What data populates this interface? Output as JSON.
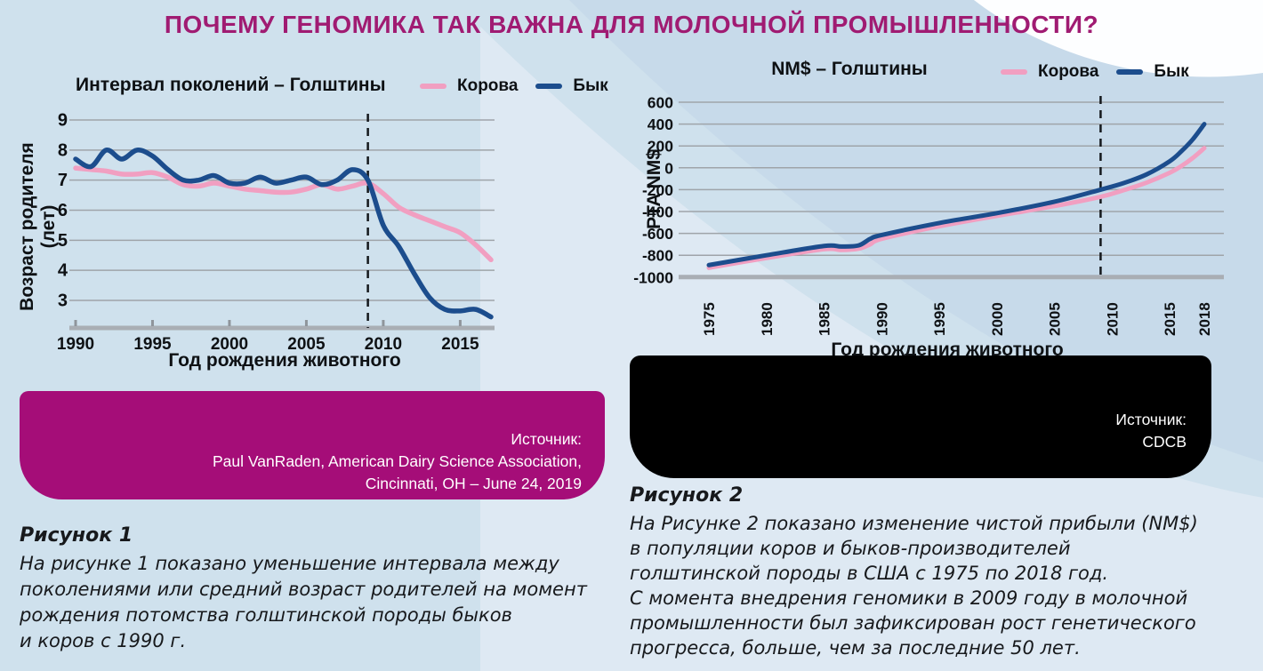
{
  "page": {
    "title": "ПОЧЕМУ ГЕНОМИКА ТАК ВАЖНА ДЛЯ МОЛОЧНОЙ ПРОМЫШЛЕННОСТИ?"
  },
  "colors": {
    "title_magenta": "#a01b72",
    "cow_pink": "#f19fc1",
    "bull_blue": "#1c4d8d",
    "source_box_magenta": "#a50d78",
    "source_box_black": "#000000",
    "background_blue": "#cfe1ed"
  },
  "chart_data": [
    {
      "type": "line",
      "title": "Интервал поколений – Голштины",
      "xlabel": "Год рождения животного",
      "ylabel": "Возраст родителя (лет)",
      "x_ticks": [
        1990,
        1995,
        2000,
        2005,
        2010,
        2015
      ],
      "y_ticks": [
        9,
        8,
        7,
        6,
        5,
        4,
        3
      ],
      "xlim": [
        1990,
        2017
      ],
      "ylim": [
        2.1,
        9
      ],
      "grid": true,
      "legend_position": "top-right",
      "annotation_line_x": 2009,
      "series": [
        {
          "name": "Корова",
          "color": "#f19fc1",
          "x": [
            1990,
            1991,
            1992,
            1993,
            1994,
            1995,
            1996,
            1997,
            1998,
            1999,
            2000,
            2001,
            2002,
            2003,
            2004,
            2005,
            2006,
            2007,
            2008,
            2009,
            2010,
            2011,
            2012,
            2013,
            2014,
            2015,
            2016,
            2017
          ],
          "y": [
            7.4,
            7.35,
            7.3,
            7.2,
            7.2,
            7.25,
            7.1,
            6.85,
            6.8,
            6.9,
            6.8,
            6.7,
            6.65,
            6.6,
            6.6,
            6.7,
            6.85,
            6.7,
            6.8,
            6.9,
            6.55,
            6.1,
            5.85,
            5.65,
            5.45,
            5.25,
            4.85,
            4.35
          ]
        },
        {
          "name": "Бык",
          "color": "#1c4d8d",
          "x": [
            1990,
            1991,
            1992,
            1993,
            1994,
            1995,
            1996,
            1997,
            1998,
            1999,
            2000,
            2001,
            2002,
            2003,
            2004,
            2005,
            2006,
            2007,
            2008,
            2009,
            2010,
            2011,
            2012,
            2013,
            2014,
            2015,
            2016,
            2017
          ],
          "y": [
            7.7,
            7.45,
            8.0,
            7.7,
            8.0,
            7.8,
            7.35,
            7.0,
            7.0,
            7.15,
            6.9,
            6.9,
            7.1,
            6.9,
            7.0,
            7.1,
            6.85,
            7.0,
            7.35,
            7.0,
            5.5,
            4.8,
            3.9,
            3.1,
            2.7,
            2.65,
            2.7,
            2.45
          ]
        }
      ]
    },
    {
      "type": "line",
      "title": "NM$ – Голштины",
      "xlabel": "Год рождения животного",
      "ylabel": "PTA NM$",
      "x_ticks": [
        1975,
        1980,
        1985,
        1990,
        1995,
        2000,
        2005,
        2010,
        2015,
        2018
      ],
      "y_ticks": [
        600,
        400,
        200,
        0,
        -200,
        -400,
        -600,
        -800,
        -1000
      ],
      "xlim": [
        1975,
        2018
      ],
      "ylim": [
        -1000,
        600
      ],
      "grid": true,
      "legend_position": "top-right",
      "annotation_line_x": 2009,
      "series": [
        {
          "name": "Корова",
          "color": "#f19fc1",
          "x": [
            1975,
            1980,
            1985,
            1986.5,
            1988,
            1989,
            1990,
            1995,
            2000,
            2005,
            2009,
            2011,
            2013,
            2015,
            2016,
            2017,
            2018
          ],
          "y": [
            -915,
            -825,
            -745,
            -752,
            -740,
            -700,
            -650,
            -535,
            -440,
            -350,
            -265,
            -205,
            -135,
            -45,
            15,
            90,
            180
          ]
        },
        {
          "name": "Бык",
          "color": "#1c4d8d",
          "x": [
            1975,
            1980,
            1985,
            1986.5,
            1988,
            1989,
            1990,
            1995,
            2000,
            2005,
            2009,
            2011,
            2013,
            2015,
            2016,
            2017,
            2018
          ],
          "y": [
            -890,
            -800,
            -715,
            -720,
            -710,
            -650,
            -615,
            -505,
            -415,
            -310,
            -200,
            -140,
            -60,
            60,
            150,
            260,
            400
          ]
        }
      ]
    }
  ],
  "sources": {
    "figure1": [
      "Источник:",
      "Paul VanRaden, American Dairy Science Association,",
      "Cincinnati, OH – June 24, 2019"
    ],
    "figure2": [
      "Источник:",
      "CDCB"
    ]
  },
  "captions": {
    "figure1_heading": "Рисунок 1",
    "figure1_lines": [
      "На рисунке 1 показано уменьшение интервала между",
      "поколениями или средний возраст родителей на момент",
      "рождения потомства голштинской породы быков",
      "и коров с 1990 г."
    ],
    "figure2_heading": "Рисунок 2",
    "figure2_lines": [
      "На Рисунке 2 показано изменение чистой прибыли (NM$)",
      "в популяции коров и быков-производителей",
      "голштинской породы в США с 1975 по 2018 год.",
      "С момента внедрения геномики в 2009 году в молочной",
      "промышленности был зафиксирован рост генетического",
      "прогресса, больше, чем за последние 50 лет."
    ]
  }
}
